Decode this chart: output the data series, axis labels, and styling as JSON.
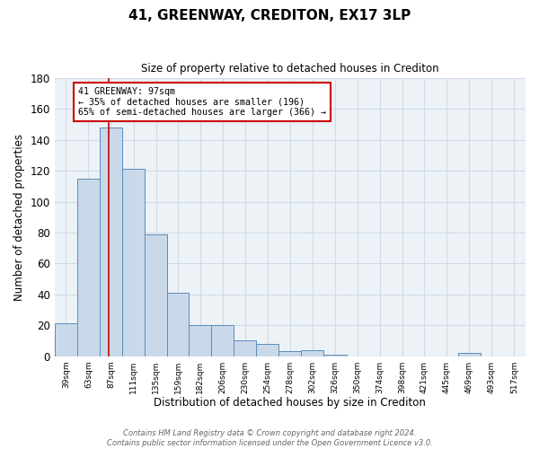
{
  "title": "41, GREENWAY, CREDITON, EX17 3LP",
  "subtitle": "Size of property relative to detached houses in Crediton",
  "xlabel": "Distribution of detached houses by size in Crediton",
  "ylabel": "Number of detached properties",
  "bin_labels": [
    "39sqm",
    "63sqm",
    "87sqm",
    "111sqm",
    "135sqm",
    "159sqm",
    "182sqm",
    "206sqm",
    "230sqm",
    "254sqm",
    "278sqm",
    "302sqm",
    "326sqm",
    "350sqm",
    "374sqm",
    "398sqm",
    "421sqm",
    "445sqm",
    "469sqm",
    "493sqm",
    "517sqm"
  ],
  "bar_values": [
    21,
    115,
    148,
    121,
    79,
    41,
    20,
    20,
    10,
    8,
    3,
    4,
    1,
    0,
    0,
    0,
    0,
    0,
    2,
    0,
    0
  ],
  "bar_color": "#c9d9ea",
  "bar_edge_color": "#5b8db8",
  "bar_edge_width": 0.7,
  "red_line_x": 97,
  "bin_edges": [
    39,
    63,
    87,
    111,
    135,
    159,
    182,
    206,
    230,
    254,
    278,
    302,
    326,
    350,
    374,
    398,
    421,
    445,
    469,
    493,
    517,
    541
  ],
  "ylim": [
    0,
    180
  ],
  "yticks": [
    0,
    20,
    40,
    60,
    80,
    100,
    120,
    140,
    160,
    180
  ],
  "annotation_text": "41 GREENWAY: 97sqm\n← 35% of detached houses are smaller (196)\n65% of semi-detached houses are larger (366) →",
  "annotation_box_color": "#ffffff",
  "annotation_border_color": "#cc0000",
  "footer_text": "Contains HM Land Registry data © Crown copyright and database right 2024.\nContains public sector information licensed under the Open Government Licence v3.0.",
  "background_color": "#edf2f7",
  "grid_color": "#d0dae6",
  "fig_bg_color": "#ffffff"
}
